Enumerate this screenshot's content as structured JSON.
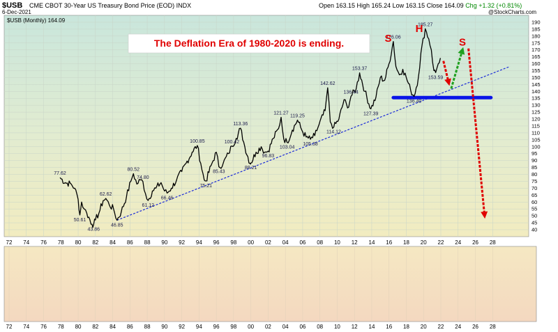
{
  "header": {
    "symbol": "$USB",
    "description": "CME CBOT 30-Year US Treasury Bond Price (EOD)  INDX",
    "date": "6-Dec-2021",
    "ohlc": "Open 163.15  High 165.24  Low 163.15  Close 164.09",
    "change": "Chg +1.32 (+0.81%)",
    "brand": "@StockCharts.com"
  },
  "chart_data": {
    "type": "line",
    "title": "$USB (Monthly) 164.09",
    "annotation": "The Deflation Era of 1980-2020 is ending.",
    "xlim": [
      1972,
      2030
    ],
    "ylim": [
      40,
      190
    ],
    "x_ticks": [
      "72",
      "74",
      "76",
      "78",
      "80",
      "82",
      "84",
      "86",
      "88",
      "90",
      "92",
      "94",
      "96",
      "98",
      "00",
      "02",
      "04",
      "06",
      "08",
      "10",
      "12",
      "14",
      "16",
      "18",
      "20",
      "22",
      "24",
      "26",
      "28"
    ],
    "y_ticks": [
      40,
      45,
      50,
      55,
      60,
      65,
      70,
      75,
      80,
      85,
      90,
      95,
      100,
      105,
      110,
      115,
      120,
      125,
      130,
      135,
      140,
      145,
      150,
      155,
      160,
      165,
      170,
      175,
      180,
      185,
      190
    ],
    "series": [
      {
        "name": "$USB (Monthly)",
        "points": [
          [
            1977.9,
            77.62
          ],
          [
            1978.5,
            74
          ],
          [
            1979.2,
            73
          ],
          [
            1979.6,
            70
          ],
          [
            1980.0,
            62
          ],
          [
            1980.2,
            50.61
          ],
          [
            1980.4,
            60
          ],
          [
            1980.7,
            55
          ],
          [
            1981.0,
            52
          ],
          [
            1981.6,
            44
          ],
          [
            1981.8,
            43.86
          ],
          [
            1982.0,
            47
          ],
          [
            1982.4,
            52
          ],
          [
            1982.9,
            61
          ],
          [
            1983.2,
            62.62
          ],
          [
            1983.6,
            58
          ],
          [
            1984.1,
            55
          ],
          [
            1984.5,
            46.85
          ],
          [
            1985.0,
            53
          ],
          [
            1985.6,
            64
          ],
          [
            1986.1,
            75
          ],
          [
            1986.4,
            80.52
          ],
          [
            1986.8,
            73
          ],
          [
            1987.2,
            76
          ],
          [
            1987.5,
            74.8
          ],
          [
            1987.8,
            66
          ],
          [
            1988.1,
            61.12
          ],
          [
            1988.6,
            68
          ],
          [
            1989.0,
            70
          ],
          [
            1989.6,
            74
          ],
          [
            1990.0,
            68
          ],
          [
            1990.3,
            66.46
          ],
          [
            1990.8,
            70
          ],
          [
            1991.4,
            76
          ],
          [
            1992.0,
            82
          ],
          [
            1992.5,
            88
          ],
          [
            1993.2,
            96
          ],
          [
            1993.8,
            100.85
          ],
          [
            1994.2,
            88
          ],
          [
            1994.6,
            76
          ],
          [
            1994.8,
            75.21
          ],
          [
            1995.5,
            88
          ],
          [
            1996.0,
            96
          ],
          [
            1996.3,
            85.43
          ],
          [
            1996.8,
            88
          ],
          [
            1997.4,
            95
          ],
          [
            1997.8,
            100.42
          ],
          [
            1998.3,
            106
          ],
          [
            1998.8,
            113.36
          ],
          [
            1999.3,
            100
          ],
          [
            1999.9,
            88
          ],
          [
            2000.0,
            88.21
          ],
          [
            2000.6,
            96
          ],
          [
            2001.2,
            100
          ],
          [
            2001.6,
            96
          ],
          [
            2002.0,
            96.83
          ],
          [
            2002.6,
            106
          ],
          [
            2003.2,
            113
          ],
          [
            2003.5,
            121.27
          ],
          [
            2003.8,
            106
          ],
          [
            2004.2,
            103.04
          ],
          [
            2004.8,
            112
          ],
          [
            2005.4,
            119.25
          ],
          [
            2005.9,
            112
          ],
          [
            2006.4,
            107
          ],
          [
            2006.9,
            105.38
          ],
          [
            2007.4,
            108
          ],
          [
            2007.9,
            116
          ],
          [
            2008.6,
            126
          ],
          [
            2008.9,
            142.62
          ],
          [
            2009.2,
            118
          ],
          [
            2009.6,
            114.12
          ],
          [
            2010.2,
            120
          ],
          [
            2010.8,
            134
          ],
          [
            2011.2,
            128
          ],
          [
            2011.6,
            136.44
          ],
          [
            2012.2,
            142
          ],
          [
            2012.6,
            153.37
          ],
          [
            2013.2,
            140
          ],
          [
            2013.9,
            127.39
          ],
          [
            2014.5,
            136
          ],
          [
            2015.0,
            150
          ],
          [
            2015.5,
            148
          ],
          [
            2016.0,
            160
          ],
          [
            2016.5,
            176.06
          ],
          [
            2016.8,
            158
          ],
          [
            2017.2,
            152
          ],
          [
            2017.6,
            156
          ],
          [
            2018.0,
            150
          ],
          [
            2018.5,
            141
          ],
          [
            2018.9,
            136.4
          ],
          [
            2019.4,
            150
          ],
          [
            2019.7,
            168
          ],
          [
            2020.2,
            185.27
          ],
          [
            2020.6,
            178
          ],
          [
            2020.9,
            170
          ],
          [
            2021.2,
            155
          ],
          [
            2021.4,
            153.59
          ],
          [
            2021.7,
            160
          ],
          [
            2021.95,
            164.09
          ]
        ]
      }
    ],
    "labels": [
      {
        "x": 1977.9,
        "y": 77.62,
        "text": "77.62"
      },
      {
        "x": 1980.2,
        "y": 50.61,
        "text": "50.61"
      },
      {
        "x": 1981.8,
        "y": 43.86,
        "text": "43.86"
      },
      {
        "x": 1983.2,
        "y": 62.62,
        "text": "62.62"
      },
      {
        "x": 1984.5,
        "y": 46.85,
        "text": "46.85"
      },
      {
        "x": 1986.4,
        "y": 80.52,
        "text": "80.52"
      },
      {
        "x": 1987.5,
        "y": 74.8,
        "text": "74.80"
      },
      {
        "x": 1988.1,
        "y": 61.12,
        "text": "61.12"
      },
      {
        "x": 1990.3,
        "y": 66.46,
        "text": "66.46"
      },
      {
        "x": 1993.8,
        "y": 100.85,
        "text": "100.85"
      },
      {
        "x": 1994.8,
        "y": 75.21,
        "text": "75.21"
      },
      {
        "x": 1996.3,
        "y": 85.43,
        "text": "85.43"
      },
      {
        "x": 1997.8,
        "y": 100.42,
        "text": "100.42"
      },
      {
        "x": 1998.8,
        "y": 113.36,
        "text": "113.36"
      },
      {
        "x": 2000.0,
        "y": 88.21,
        "text": "88.21"
      },
      {
        "x": 2002.0,
        "y": 96.83,
        "text": "96.83"
      },
      {
        "x": 2003.5,
        "y": 121.27,
        "text": "121.27"
      },
      {
        "x": 2004.2,
        "y": 103.04,
        "text": "103.04"
      },
      {
        "x": 2005.4,
        "y": 119.25,
        "text": "119.25"
      },
      {
        "x": 2006.9,
        "y": 105.38,
        "text": "105.38"
      },
      {
        "x": 2008.9,
        "y": 142.62,
        "text": "142.62"
      },
      {
        "x": 2009.6,
        "y": 114.12,
        "text": "114.12"
      },
      {
        "x": 2011.6,
        "y": 136.44,
        "text": "136.44"
      },
      {
        "x": 2012.6,
        "y": 153.37,
        "text": "153.37"
      },
      {
        "x": 2013.9,
        "y": 127.39,
        "text": "127.39"
      },
      {
        "x": 2016.5,
        "y": 176.06,
        "text": "176.06"
      },
      {
        "x": 2018.9,
        "y": 136.4,
        "text": "136.40"
      },
      {
        "x": 2020.2,
        "y": 185.27,
        "text": "185.27"
      },
      {
        "x": 2021.4,
        "y": 153.59,
        "text": "153.59"
      }
    ],
    "pattern_letters": [
      {
        "x": 2015.9,
        "y": 176,
        "text": "S"
      },
      {
        "x": 2019.5,
        "y": 183,
        "text": "H"
      },
      {
        "x": 2024.5,
        "y": 173,
        "text": "S"
      }
    ],
    "trendline": [
      [
        1984.5,
        46.85
      ],
      [
        2030,
        158
      ]
    ],
    "neckline": {
      "y": 135.5,
      "x0": 2016.5,
      "x1": 2027.8
    },
    "arrows": [
      {
        "from": [
          2022.3,
          162
        ],
        "to": [
          2023.0,
          144
        ],
        "color": "#e00000"
      },
      {
        "from": [
          2023.2,
          142
        ],
        "to": [
          2024.6,
          172
        ],
        "color": "#20a020"
      },
      {
        "from": [
          2025.2,
          171
        ],
        "to": [
          2027.1,
          48
        ],
        "color": "#e00000"
      }
    ]
  }
}
